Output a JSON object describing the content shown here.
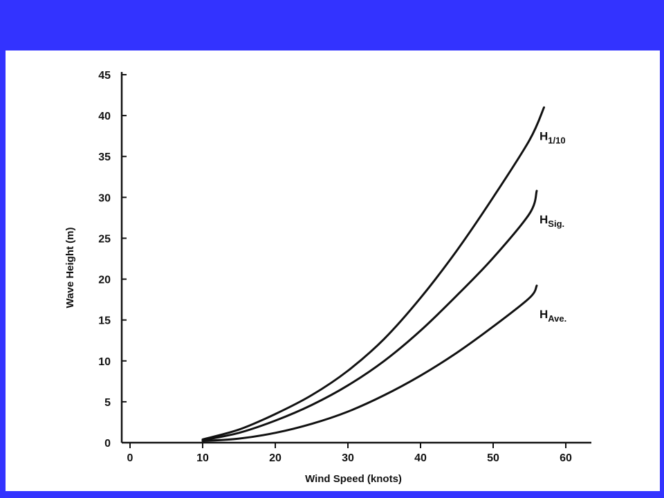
{
  "colors": {
    "frame": "#3333ff",
    "panel": "#ffffff",
    "ink": "#111111"
  },
  "chart_data": {
    "type": "line",
    "title": "",
    "xlabel": "Wind Speed (knots)",
    "ylabel": "Wave Height (m)",
    "xlim": [
      0,
      64
    ],
    "ylim": [
      0,
      45
    ],
    "xticks": [
      0,
      10,
      20,
      30,
      40,
      50,
      60
    ],
    "yticks": [
      0,
      5,
      10,
      15,
      20,
      25,
      30,
      35,
      40,
      45
    ],
    "grid": false,
    "series": [
      {
        "name": "H1/10",
        "label_main": "H",
        "label_sub": "1/10",
        "x": [
          10,
          15,
          20,
          25,
          30,
          35,
          40,
          45,
          50,
          55,
          57
        ],
        "y": [
          0.4,
          1.6,
          3.5,
          5.8,
          8.8,
          12.7,
          17.7,
          23.5,
          30.0,
          37.0,
          41.0
        ]
      },
      {
        "name": "HSig.",
        "label_main": "H",
        "label_sub": "Sig.",
        "x": [
          10,
          15,
          20,
          25,
          30,
          35,
          40,
          45,
          50,
          55,
          56
        ],
        "y": [
          0.3,
          1.2,
          2.7,
          4.6,
          7.0,
          10.0,
          13.7,
          18.0,
          22.6,
          28.0,
          30.8
        ]
      },
      {
        "name": "HAve.",
        "label_main": "H",
        "label_sub": "Ave.",
        "x": [
          10,
          15,
          20,
          25,
          30,
          35,
          40,
          45,
          50,
          55,
          56
        ],
        "y": [
          0.2,
          0.5,
          1.2,
          2.3,
          3.8,
          5.8,
          8.2,
          11.0,
          14.2,
          17.7,
          19.2
        ]
      }
    ]
  }
}
